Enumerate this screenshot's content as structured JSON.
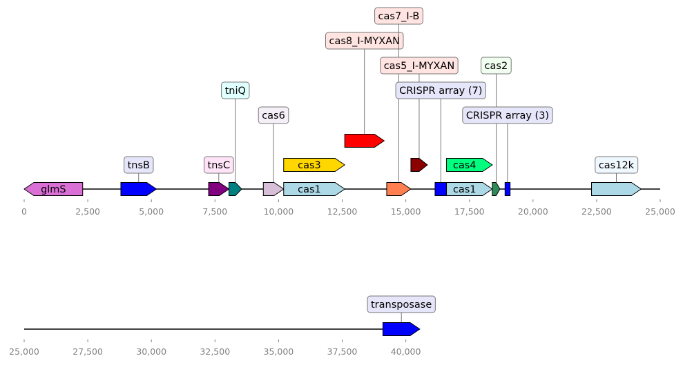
{
  "tracks": [
    {
      "name": "track-1",
      "range": [
        0,
        25000
      ],
      "ticks": [
        {
          "value": 0,
          "label": "0"
        },
        {
          "value": 2500,
          "label": "2,500"
        },
        {
          "value": 5000,
          "label": "5,000"
        },
        {
          "value": 7500,
          "label": "7,500"
        },
        {
          "value": 10000,
          "label": "10,000"
        },
        {
          "value": 12500,
          "label": "12,500"
        },
        {
          "value": 15000,
          "label": "15,000"
        },
        {
          "value": 17500,
          "label": "17,500"
        },
        {
          "value": 20000,
          "label": "20,000"
        },
        {
          "value": 22500,
          "label": "22,500"
        },
        {
          "value": 25000,
          "label": "25,000"
        }
      ],
      "features": [
        {
          "start": 0,
          "end": 2300,
          "strand": -1,
          "row": 0,
          "color": "#DA70D6",
          "label": "glmS",
          "label_mode": "inline"
        },
        {
          "start": 3800,
          "end": 5200,
          "strand": 1,
          "row": 0,
          "color": "#0000FF",
          "label": "tnsB",
          "label_mode": "box",
          "label_level": 1,
          "box_color": "#E6E6FA"
        },
        {
          "start": 7250,
          "end": 8050,
          "strand": 1,
          "row": 0,
          "color": "#800080",
          "label": "tnsC",
          "label_mode": "box",
          "label_level": 1,
          "box_color": "#FFE4F8"
        },
        {
          "start": 8050,
          "end": 8550,
          "strand": 1,
          "row": 0,
          "color": "#008080",
          "label": "tniQ",
          "label_mode": "box",
          "label_level": 4,
          "box_color": "#E0FFFF"
        },
        {
          "start": 9400,
          "end": 10200,
          "strand": 1,
          "row": 0,
          "color": "#D8BFD8",
          "label": "cas6",
          "label_mode": "box",
          "label_level": 3,
          "box_color": "#F5F0F8"
        },
        {
          "start": 10200,
          "end": 12600,
          "strand": 1,
          "row": 0,
          "color": "#ADD8E6",
          "label": "cas1",
          "label_mode": "inline"
        },
        {
          "start": 10200,
          "end": 12600,
          "strand": 1,
          "row": 1,
          "color": "#FFD700",
          "label": "cas3",
          "label_mode": "inline"
        },
        {
          "start": 12600,
          "end": 14150,
          "strand": 1,
          "row": 2,
          "color": "#FF0000",
          "label": "cas8_I-MYXAN",
          "label_mode": "box",
          "label_level": 6,
          "box_color": "#FFE4E1"
        },
        {
          "start": 14250,
          "end": 15200,
          "strand": 1,
          "row": 0,
          "color": "#FF7F50",
          "label": "cas7_I-B",
          "label_mode": "box",
          "label_level": 7,
          "box_color": "#FFE4E1"
        },
        {
          "start": 15200,
          "end": 15850,
          "strand": 1,
          "row": 1,
          "color": "#8B0000",
          "label": "cas5_I-MYXAN",
          "label_mode": "box",
          "label_level": 5,
          "box_color": "#FFE4E1"
        },
        {
          "start": 16150,
          "end": 16600,
          "strand": 0,
          "row": 0,
          "color": "#0000FF",
          "label": "CRISPR array (7)",
          "label_mode": "box",
          "label_level": 4,
          "box_color": "#E6E6FA"
        },
        {
          "start": 16600,
          "end": 18400,
          "strand": 1,
          "row": 0,
          "color": "#ADD8E6",
          "label": "cas1",
          "label_mode": "inline"
        },
        {
          "start": 16600,
          "end": 18400,
          "strand": 1,
          "row": 1,
          "color": "#00FF7F",
          "label": "cas4",
          "label_mode": "inline"
        },
        {
          "start": 18400,
          "end": 18700,
          "strand": 1,
          "row": 0,
          "color": "#2E8B57",
          "label": "cas2",
          "label_mode": "box",
          "label_level": 5,
          "box_color": "#F0FFF0"
        },
        {
          "start": 18900,
          "end": 19100,
          "strand": 0,
          "row": 0,
          "color": "#0000FF",
          "label": "CRISPR array (3)",
          "label_mode": "box",
          "label_level": 3,
          "box_color": "#E6E6FA"
        },
        {
          "start": 22300,
          "end": 24250,
          "strand": 1,
          "row": 0,
          "color": "#ADD8E6",
          "label": "cas12k",
          "label_mode": "box",
          "label_level": 1,
          "box_color": "#F0F8FF"
        }
      ]
    },
    {
      "name": "track-2",
      "range": [
        25000,
        40000
      ],
      "ticks": [
        {
          "value": 25000,
          "label": "25,000"
        },
        {
          "value": 27500,
          "label": "27,500"
        },
        {
          "value": 30000,
          "label": "30,000"
        },
        {
          "value": 32500,
          "label": "32,500"
        },
        {
          "value": 35000,
          "label": "35,000"
        },
        {
          "value": 37500,
          "label": "37,500"
        },
        {
          "value": 40000,
          "label": "40,000"
        }
      ],
      "features": [
        {
          "start": 39100,
          "end": 40550,
          "strand": 1,
          "row": 0,
          "color": "#0000FF",
          "label": "transposase",
          "label_mode": "box",
          "label_level": 1,
          "box_color": "#E6E6FA"
        }
      ]
    }
  ]
}
